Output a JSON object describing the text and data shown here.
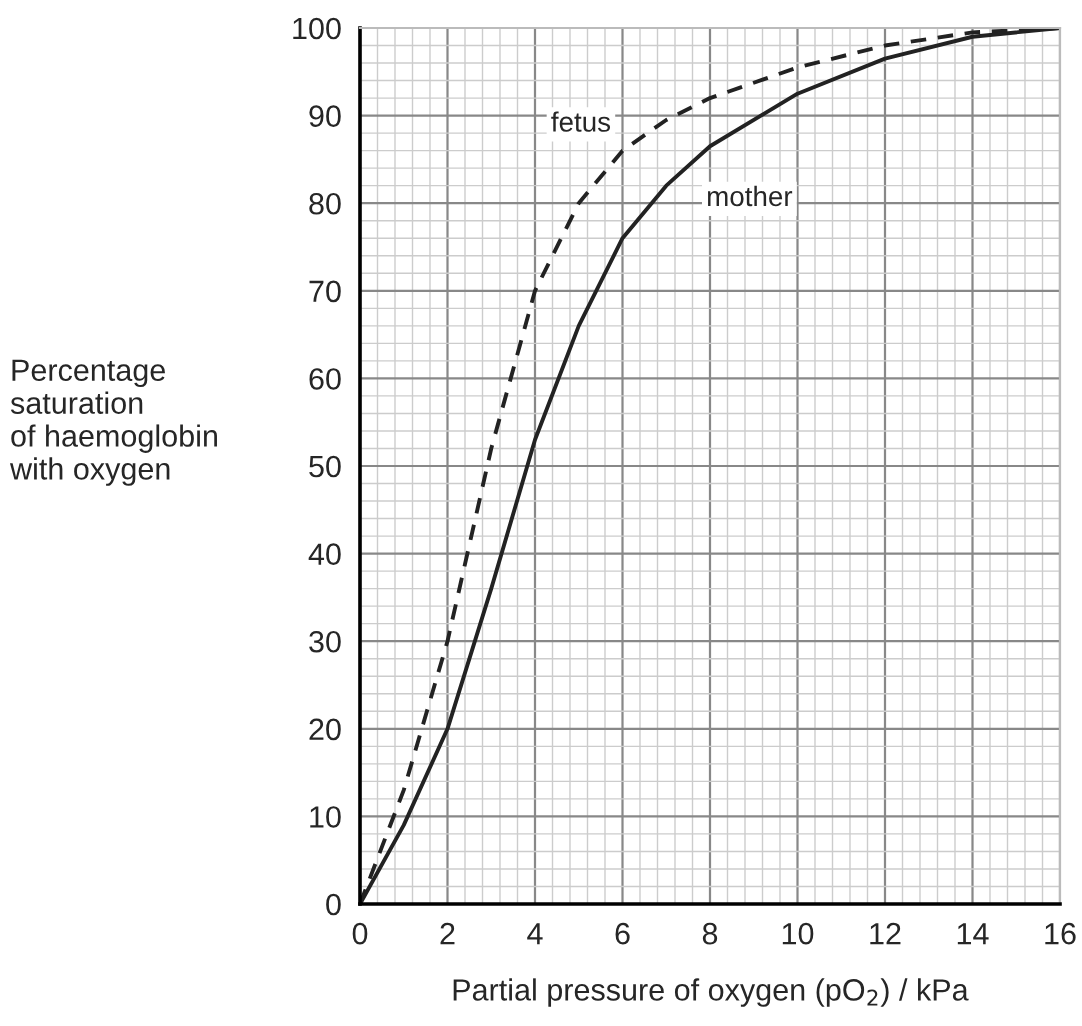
{
  "chart_data": {
    "type": "line",
    "xlabel": "Partial pressure of oxygen (pO$_{2}$) / kPa",
    "ylabel": "Percentage\nsaturation\nof haemoglobin\nwith oxygen",
    "x": [
      0,
      1,
      2,
      3,
      4,
      5,
      6,
      7,
      8,
      10,
      12,
      14,
      16
    ],
    "series": [
      {
        "name": "fetus",
        "color": "#222222",
        "line_style": "dashed",
        "values": [
          0,
          13,
          30,
          52,
          70,
          80,
          86,
          89.5,
          92,
          95.5,
          98,
          99.5,
          100
        ]
      },
      {
        "name": "mother",
        "color": "#222222",
        "line_style": "solid",
        "values": [
          0,
          9,
          20,
          36,
          53,
          66,
          76,
          82,
          86.5,
          92.5,
          96.5,
          99,
          100
        ]
      }
    ],
    "xlim": [
      0,
      16
    ],
    "xticks": [
      0,
      2,
      4,
      6,
      8,
      10,
      12,
      14,
      16
    ],
    "ylim": [
      0,
      100
    ],
    "yticks": [
      0,
      10,
      20,
      30,
      40,
      50,
      60,
      70,
      80,
      90,
      100
    ],
    "grid": true,
    "legend": false,
    "marker": "none"
  }
}
